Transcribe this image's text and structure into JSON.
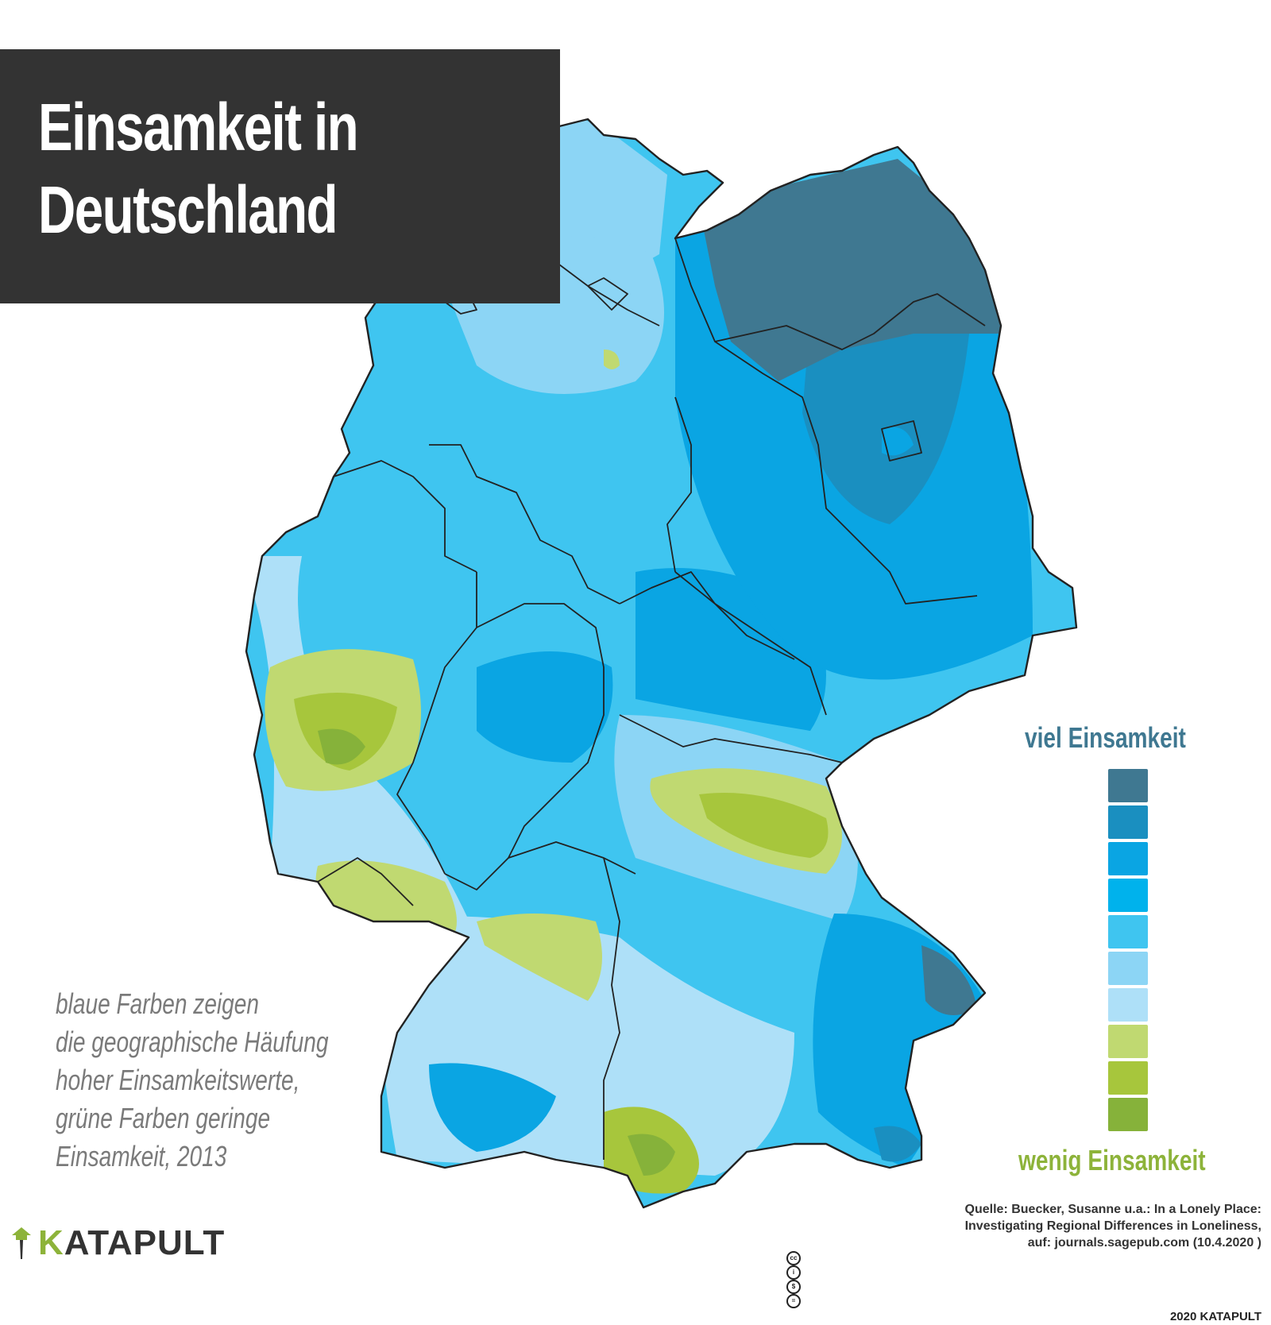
{
  "title": {
    "line1": "Einsamkeit in",
    "line2": "Deutschland"
  },
  "legend": {
    "top_label": "viel Einsamkeit",
    "bottom_label": "wenig Einsamkeit",
    "classes": [
      {
        "color": "#3f7891"
      },
      {
        "color": "#1a8fc0"
      },
      {
        "color": "#0aa5e3"
      },
      {
        "color": "#00b2ec"
      },
      {
        "color": "#3fc5f0"
      },
      {
        "color": "#8cd5f5"
      },
      {
        "color": "#aee0f8"
      },
      {
        "color": "#c0d971"
      },
      {
        "color": "#a7c63c"
      },
      {
        "color": "#86b23a"
      }
    ]
  },
  "note": {
    "line1": "blaue Farben zeigen",
    "line2": "die geographische Häufung",
    "line3": "hoher Einsamkeitswerte,",
    "line4": "grüne Farben geringe",
    "line5": "Einsamkeit, 2013"
  },
  "source": {
    "line1": "Quelle: Buecker, Susanne u.a.: In a Lonely Place:",
    "line2": "Investigating Regional Differences in Loneliness,",
    "line3": "auf: journals.sagepub.com (10.4.2020 )",
    "license": "2020 KATAPULT"
  },
  "logo": {
    "first_letter": "K",
    "rest": "ATAPULT",
    "brand_color": "#8db33a"
  },
  "map_colors": {
    "border": "#222222",
    "lightest_blue": "#aee0f8",
    "light_blue": "#8cd5f5",
    "mid_blue": "#3fc5f0",
    "blue": "#00b2ec",
    "strong_blue": "#0aa5e3",
    "deep_blue": "#1a8fc0",
    "darkest": "#3f7891",
    "green_light": "#c0d971",
    "green_mid": "#a7c63c",
    "green_dark": "#86b23a"
  }
}
